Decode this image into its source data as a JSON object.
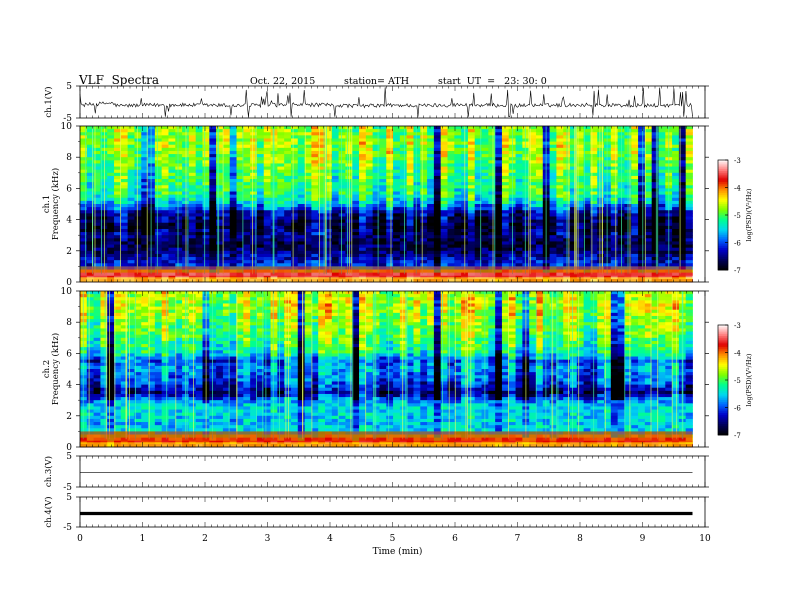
{
  "header": {
    "title": "VLF  Spectra",
    "date": "Oct. 22, 2015",
    "station": "station= ATH",
    "start": "start  UT  =   23: 30: 0"
  },
  "colors": {
    "colormap": [
      "#000000",
      "#00005a",
      "#0000c8",
      "#0064ff",
      "#00d8f0",
      "#00ff90",
      "#7cff00",
      "#ffff00",
      "#ff9000",
      "#e00000",
      "#ff8080",
      "#ffffff"
    ]
  },
  "chart_data": [
    {
      "type": "line",
      "name": "ch1-waveform",
      "ylabel": "ch.1(V)",
      "ylim": [
        -5,
        5
      ],
      "yticks": [
        "5",
        "-5"
      ],
      "x": [
        0,
        0.5,
        0.6,
        1.0,
        1.5,
        2.0,
        2.5,
        3.0,
        3.5,
        4.0,
        4.5,
        5.0,
        5.5,
        6.0,
        6.5,
        7.0,
        7.5,
        8.0,
        8.5,
        9.0,
        9.5,
        9.8
      ],
      "y": [
        -1.0,
        -0.3,
        -1.2,
        -1.0,
        -0.9,
        -1.0,
        -1.1,
        -1.0,
        -0.8,
        -1.0,
        -1.2,
        -1.0,
        -1.1,
        -0.9,
        -1.0,
        -1.1,
        -1.0,
        -0.9,
        -1.0,
        -1.1,
        -1.0,
        -1.0
      ],
      "spikes": true
    },
    {
      "type": "heatmap",
      "name": "ch1-spectrogram",
      "ylabel": "ch.1\nFrequency  (kHz)",
      "ylim": [
        0,
        10
      ],
      "yticks": [
        "0",
        "2",
        "4",
        "6",
        "8",
        "10"
      ],
      "colorbar_label": "log(PSD)(V²/Hz)",
      "clim": [
        -7,
        -3
      ],
      "colorbar_ticks": [
        "-3",
        "-4",
        "-5",
        "-6",
        "-7"
      ],
      "freq_profile_khz": [
        0,
        0.5,
        1,
        1.5,
        2,
        2.5,
        3,
        3.5,
        4,
        4.5,
        5,
        5.5,
        6,
        7,
        8,
        9,
        10
      ],
      "freq_profile_level": [
        -3.5,
        -3.3,
        -6.1,
        -6.3,
        -6.6,
        -6.7,
        -6.5,
        -6.7,
        -6.6,
        -6.3,
        -5.6,
        -5.2,
        -5.1,
        -5.0,
        -4.8,
        -4.7,
        -4.8
      ]
    },
    {
      "type": "heatmap",
      "name": "ch2-spectrogram",
      "ylabel": "ch.2\nFrequency  (kHz)",
      "ylim": [
        0,
        10
      ],
      "yticks": [
        "0",
        "2",
        "4",
        "6",
        "8",
        "10"
      ],
      "colorbar_label": "log(PSD)(V²/Hz)",
      "clim": [
        -7,
        -3
      ],
      "colorbar_ticks": [
        "-3",
        "-4",
        "-5",
        "-6",
        "-7"
      ],
      "freq_profile_khz": [
        0,
        0.5,
        1,
        1.5,
        2,
        2.5,
        3,
        3.5,
        4,
        4.5,
        5,
        5.5,
        6,
        7,
        8,
        9,
        10
      ],
      "freq_profile_level": [
        -3.6,
        -4.0,
        -5.5,
        -5.6,
        -5.5,
        -5.5,
        -5.8,
        -6.5,
        -6.1,
        -5.9,
        -5.7,
        -6.0,
        -5.3,
        -5.0,
        -4.8,
        -4.6,
        -4.7
      ]
    },
    {
      "type": "line",
      "name": "ch3-waveform",
      "ylabel": "ch.3(V)",
      "ylim": [
        -5,
        5
      ],
      "yticks": [
        "5",
        "-5"
      ],
      "x": [
        0,
        9.8
      ],
      "y": [
        -0.3,
        -0.3
      ]
    },
    {
      "type": "line",
      "name": "ch4-waveform",
      "ylabel": "ch.4(V)",
      "ylim": [
        -5,
        5
      ],
      "yticks": [
        "5",
        "-5"
      ],
      "x": [
        0,
        9.8
      ],
      "y": [
        -0.5,
        -0.5
      ],
      "bold": true
    }
  ],
  "xaxis": {
    "label": "Time  (min)",
    "xlim": [
      0,
      10
    ],
    "ticks": [
      "0",
      "1",
      "2",
      "3",
      "4",
      "5",
      "6",
      "7",
      "8",
      "9",
      "10"
    ]
  }
}
